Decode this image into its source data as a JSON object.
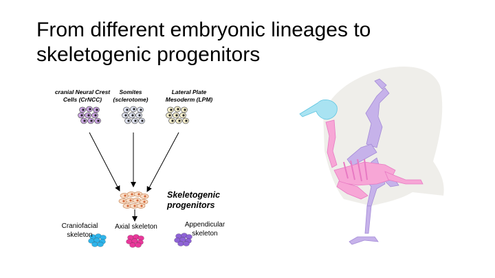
{
  "slide": {
    "title_line1": "From different embryonic lineages to",
    "title_line2": "skeletogenic progenitors"
  },
  "lineages": [
    {
      "label_line1": "cranial Neural Crest",
      "label_line2": "Cells (CrNCC)",
      "color": "#c9a3e0"
    },
    {
      "label_line1": "Somites",
      "label_line2": "(sclerotome)",
      "color": "#dfe3f1"
    },
    {
      "label_line1": "Lateral Plate",
      "label_line2": "Mesoderm (LPM)",
      "color": "#f5eecb"
    }
  ],
  "progenitors": {
    "label_line1": "Skeletogenic",
    "label_line2": "progenitors",
    "color": "#f9dcc6"
  },
  "outputs": [
    {
      "label_line1": "Craniofacial",
      "label_line2": "skeleton",
      "color": "#2fb4ea"
    },
    {
      "label_line1": "Axial skeleton",
      "label_line2": "",
      "color": "#e8389a"
    },
    {
      "label_line1": "Appendicular",
      "label_line2": "skeleton",
      "color": "#8e63d6"
    }
  ],
  "bird_colors": {
    "silhouette": "#efeeea",
    "skull": "#a9e3f2",
    "axial": "#f7a6d6",
    "limbs": "#c6b2ea"
  }
}
